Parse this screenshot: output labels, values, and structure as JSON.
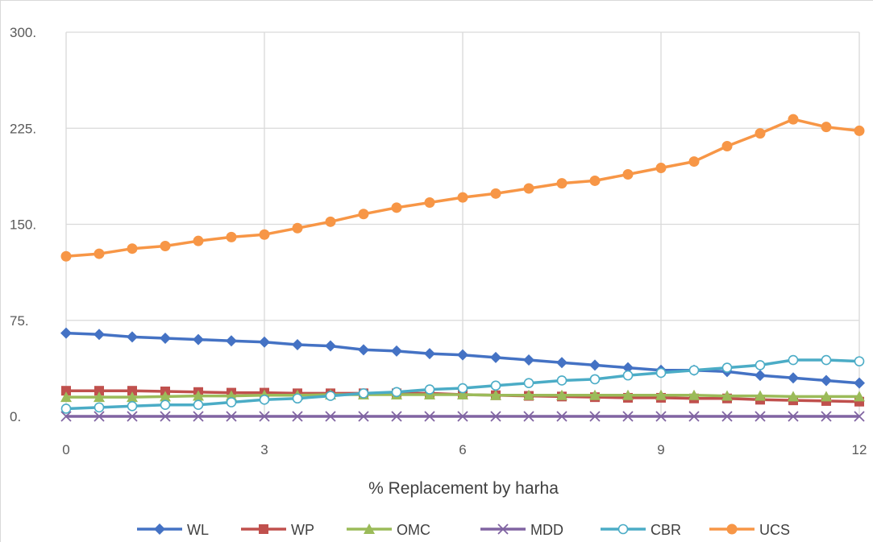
{
  "chart_data": {
    "type": "line",
    "xlabel": "% Replacement by harha",
    "ylabel": "",
    "title": "",
    "xlim": [
      0,
      12
    ],
    "ylim": [
      0,
      300
    ],
    "xticks": [
      "0",
      "3",
      "6",
      "9",
      "12"
    ],
    "xtick_values": [
      0,
      3,
      6,
      9,
      12
    ],
    "yticks": [
      "0.",
      "75.",
      "150.",
      "225.",
      "300."
    ],
    "ytick_values": [
      0,
      75,
      150,
      225,
      300
    ],
    "grid": true,
    "legend": "bottom",
    "x": [
      0,
      0.5,
      1,
      1.5,
      2,
      2.5,
      3,
      3.5,
      4,
      4.5,
      5,
      5.5,
      6,
      6.5,
      7,
      7.5,
      8,
      8.5,
      9,
      9.5,
      10,
      10.5,
      11,
      11.5,
      12
    ],
    "series": [
      {
        "name": "WL",
        "color": "#4472c4",
        "marker": "diamond",
        "values": [
          65,
          64,
          62,
          61,
          60,
          59,
          58,
          56,
          55,
          52,
          51,
          49,
          48,
          46,
          44,
          42,
          40,
          38,
          36,
          36,
          35,
          32,
          30,
          28,
          26
        ]
      },
      {
        "name": "WP",
        "color": "#c0504d",
        "marker": "square",
        "values": [
          20,
          20,
          20,
          19.5,
          19,
          18.5,
          18.5,
          18,
          18,
          18,
          18,
          18,
          17,
          16.5,
          16,
          15.5,
          15,
          14.5,
          14.5,
          14,
          14,
          13,
          12.5,
          12,
          11.5
        ]
      },
      {
        "name": "OMC",
        "color": "#9bbb59",
        "marker": "triangle",
        "values": [
          15,
          15,
          15,
          15.5,
          16,
          16,
          16.5,
          16.5,
          17,
          17,
          17,
          17,
          17,
          16.5,
          16.5,
          16.5,
          16.5,
          16.5,
          16.5,
          16.5,
          16,
          16,
          15.5,
          15.5,
          15.5
        ]
      },
      {
        "name": "MDD",
        "color": "#8064a2",
        "marker": "x",
        "values": [
          0,
          0,
          0,
          0,
          0,
          0,
          0,
          0,
          0,
          0,
          0,
          0,
          0,
          0,
          0,
          0,
          0,
          0,
          0,
          0,
          0,
          0,
          0,
          0,
          0
        ]
      },
      {
        "name": "CBR",
        "color": "#4bacc6",
        "marker": "open-circle",
        "values": [
          6,
          7,
          8,
          9,
          9,
          11,
          13,
          14,
          16,
          18,
          19,
          21,
          22,
          24,
          26,
          28,
          29,
          32,
          34,
          36,
          38,
          40,
          44,
          44,
          43
        ]
      },
      {
        "name": "UCS",
        "color": "#f79646",
        "marker": "circle",
        "values": [
          125,
          127,
          131,
          133,
          137,
          140,
          142,
          147,
          152,
          158,
          163,
          167,
          171,
          174,
          178,
          182,
          184,
          189,
          194,
          199,
          211,
          221,
          232,
          226,
          223
        ]
      }
    ]
  }
}
